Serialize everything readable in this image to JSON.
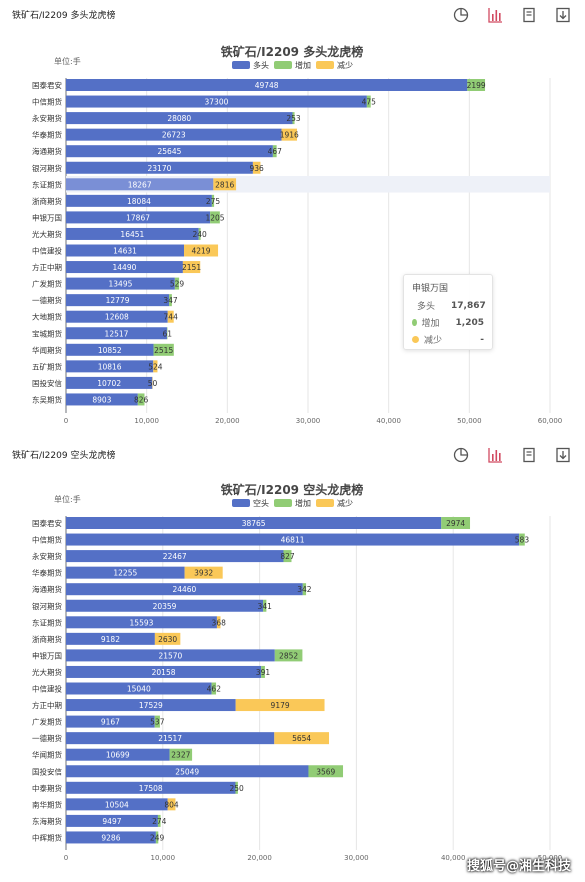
{
  "colors": {
    "primary": "#5470c6",
    "increase": "#91cc75",
    "decrease": "#fac858"
  },
  "panels": [
    {
      "label": "铁矿石/I2209 多头龙虎榜"
    },
    {
      "label": "铁矿石/I2209 空头龙虎榜"
    }
  ],
  "toolbar_icons": [
    "pie-chart-icon",
    "bar-chart-icon",
    "data-view-icon",
    "download-icon"
  ],
  "tooltip": {
    "title": "申银万国",
    "rows": [
      {
        "name": "多头",
        "value": "17,867",
        "color": "#5470c6"
      },
      {
        "name": "增加",
        "value": "1,205",
        "color": "#91cc75"
      },
      {
        "name": "减少",
        "value": "-",
        "color": "#fac858"
      }
    ]
  },
  "footer": {
    "text": "搜狐号@湘生科技"
  },
  "chart_data": [
    {
      "type": "bar",
      "orientation": "horizontal",
      "stacked": true,
      "title": "铁矿石/I2209 多头龙虎榜",
      "unit": "单位:手",
      "legend": [
        "多头",
        "增加",
        "减少"
      ],
      "legend_position": "top-center",
      "categories": [
        "国泰君安",
        "中信期货",
        "永安期货",
        "华泰期货",
        "海通期货",
        "银河期货",
        "东证期货",
        "浙商期货",
        "申银万国",
        "光大期货",
        "中信建投",
        "方正中期",
        "广发期货",
        "一德期货",
        "大地期货",
        "宝城期货",
        "华闻期货",
        "五矿期货",
        "国投安信",
        "东吴期货"
      ],
      "series": [
        {
          "name": "多头",
          "values": [
            49748,
            37300,
            28080,
            26723,
            25645,
            23170,
            18267,
            18084,
            17867,
            16451,
            14631,
            14490,
            13495,
            12779,
            12608,
            12517,
            10852,
            10816,
            10702,
            8903
          ]
        },
        {
          "name": "增加",
          "values": [
            2199,
            475,
            253,
            null,
            467,
            null,
            null,
            275,
            1205,
            240,
            null,
            null,
            529,
            347,
            null,
            61,
            2515,
            null,
            null,
            826
          ]
        },
        {
          "name": "减少",
          "values": [
            null,
            null,
            null,
            1916,
            null,
            936,
            2816,
            null,
            null,
            null,
            4219,
            2151,
            null,
            null,
            744,
            null,
            null,
            524,
            50,
            null
          ]
        }
      ],
      "highlighted_category": "东证期货",
      "xlim": [
        0,
        60000
      ],
      "xticks": [
        "0",
        "10,000",
        "20,000",
        "30,000",
        "40,000",
        "50,000",
        "60,000"
      ],
      "grid": true
    },
    {
      "type": "bar",
      "orientation": "horizontal",
      "stacked": true,
      "title": "铁矿石/I2209 空头龙虎榜",
      "unit": "单位:手",
      "legend": [
        "空头",
        "增加",
        "减少"
      ],
      "legend_position": "top-center",
      "categories": [
        "国泰君安",
        "中信期货",
        "永安期货",
        "华泰期货",
        "海通期货",
        "银河期货",
        "东证期货",
        "浙商期货",
        "申银万国",
        "光大期货",
        "中信建投",
        "方正中期",
        "广发期货",
        "一德期货",
        "华闻期货",
        "国投安信",
        "中泰期货",
        "南华期货",
        "东海期货",
        "中辉期货"
      ],
      "series": [
        {
          "name": "空头",
          "values": [
            38765,
            46811,
            22467,
            12255,
            24460,
            20359,
            15593,
            9182,
            21570,
            20158,
            15040,
            17529,
            9167,
            21517,
            10699,
            25049,
            17508,
            10504,
            9497,
            9286
          ]
        },
        {
          "name": "增加",
          "values": [
            2974,
            583,
            827,
            null,
            342,
            341,
            null,
            null,
            2852,
            391,
            462,
            null,
            537,
            null,
            2327,
            3569,
            250,
            null,
            274,
            249
          ]
        },
        {
          "name": "减少",
          "values": [
            null,
            null,
            null,
            3932,
            null,
            null,
            368,
            2630,
            null,
            null,
            null,
            9179,
            null,
            5654,
            null,
            null,
            null,
            804,
            null,
            null
          ]
        }
      ],
      "xlim": [
        0,
        50000
      ],
      "xticks": [
        "0",
        "10,000",
        "20,000",
        "30,000",
        "40,000",
        "50,000"
      ],
      "grid": true
    }
  ]
}
